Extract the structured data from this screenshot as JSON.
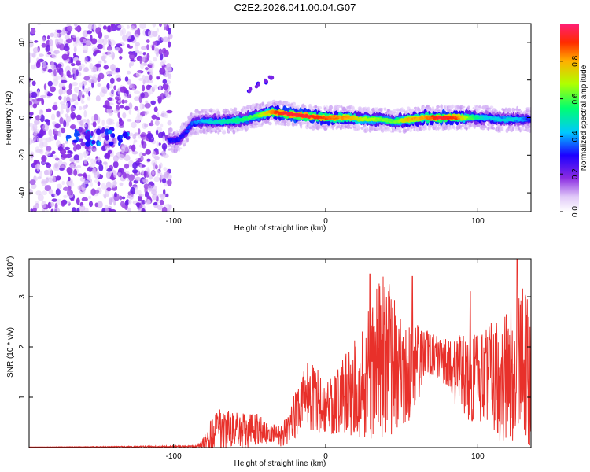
{
  "title": "C2E2.2026.041.00.04.G07",
  "chart_data": [
    {
      "type": "heatmap",
      "title": "C2E2.2026.041.00.04.G07",
      "xlabel": "Height of straight line (km)",
      "ylabel": "Frequency (Hz)",
      "xlim": [
        -195,
        135
      ],
      "ylim": [
        -50,
        50
      ],
      "xticks": [
        -100,
        0,
        100
      ],
      "yticks": [
        -40,
        -20,
        0,
        20,
        40
      ],
      "xtick_labels": [
        "-100",
        "0",
        "100"
      ],
      "ytick_labels": [
        "-40",
        "-20",
        "0",
        "20",
        "40"
      ],
      "colorbar": {
        "label": "Normalized spectral amplitude",
        "range": [
          0.0,
          1.0
        ],
        "ticks": [
          0.0,
          0.2,
          0.4,
          0.6,
          0.8
        ],
        "tick_labels": [
          "0.0",
          "0.2",
          "0.4",
          "0.6",
          "0.8"
        ]
      },
      "noise_region_x": [
        -195,
        -102
      ],
      "ridge": {
        "x": [
          -103,
          -97,
          -92,
          -88,
          -82,
          -75,
          -65,
          -55,
          -45,
          -35,
          -25,
          -15,
          -5,
          5,
          15,
          25,
          35,
          45,
          55,
          65,
          75,
          85,
          95,
          105,
          115,
          125,
          135
        ],
        "freq": [
          -12,
          -12,
          -8,
          -3,
          -2,
          -2,
          -2,
          -1,
          1,
          3,
          2,
          1,
          0,
          0,
          0,
          -1,
          -1,
          -2,
          -1,
          0,
          0,
          0,
          0,
          0,
          -1,
          -1,
          -1
        ],
        "amplitude": [
          0.3,
          0.3,
          0.3,
          0.35,
          0.4,
          0.45,
          0.5,
          0.55,
          0.6,
          0.85,
          0.95,
          0.95,
          0.9,
          0.85,
          0.8,
          0.7,
          0.65,
          0.6,
          0.8,
          0.8,
          0.95,
          0.9,
          0.6,
          0.45,
          0.45,
          0.45,
          0.3
        ]
      },
      "side_branch": {
        "x": [
          -50,
          -45,
          -40,
          -36
        ],
        "freq": [
          15,
          17,
          19,
          21
        ]
      }
    },
    {
      "type": "line",
      "xlabel": "Height of straight line (km)",
      "ylabel": "SNR (10 * v/v)",
      "yscale_label": "(x10",
      "yscale_exponent": "4",
      "xlim": [
        -195,
        135
      ],
      "ylim": [
        0,
        3.75
      ],
      "xticks": [
        -100,
        0,
        100
      ],
      "yticks": [
        1,
        2,
        3
      ],
      "xtick_labels": [
        "-100",
        "0",
        "100"
      ],
      "ytick_labels": [
        "1",
        "2",
        "3"
      ],
      "color": "#e8302a",
      "series": [
        {
          "name": "SNR",
          "x": [
            -195,
            -85,
            -80,
            -75,
            -70,
            -65,
            -60,
            -55,
            -50,
            -45,
            -40,
            -35,
            -30,
            -25,
            -20,
            -15,
            -10,
            -5,
            0,
            5,
            10,
            15,
            20,
            25,
            30,
            35,
            40,
            45,
            50,
            55,
            60,
            65,
            70,
            75,
            80,
            85,
            90,
            95,
            100,
            105,
            110,
            115,
            120,
            125,
            130,
            135
          ],
          "base": [
            0.01,
            0.02,
            0.08,
            0.2,
            0.3,
            0.35,
            0.32,
            0.3,
            0.28,
            0.35,
            0.3,
            0.25,
            0.2,
            0.3,
            0.6,
            0.9,
            1.0,
            0.9,
            0.75,
            0.8,
            0.9,
            1.0,
            1.1,
            1.2,
            1.4,
            1.6,
            1.7,
            1.5,
            1.2,
            1.3,
            1.6,
            1.7,
            1.8,
            1.75,
            1.6,
            1.5,
            1.4,
            1.3,
            1.3,
            1.4,
            1.3,
            1.2,
            1.3,
            1.4,
            1.5,
            1.2
          ],
          "spread": [
            0.0,
            0.02,
            0.12,
            0.35,
            0.45,
            0.4,
            0.35,
            0.35,
            0.35,
            0.3,
            0.25,
            0.2,
            0.2,
            0.3,
            0.5,
            0.6,
            0.8,
            0.7,
            0.5,
            0.6,
            0.7,
            0.9,
            1.0,
            1.2,
            1.4,
            1.6,
            1.6,
            1.4,
            1.2,
            1.0,
            0.8,
            0.6,
            0.5,
            0.4,
            0.5,
            0.7,
            0.8,
            0.9,
            0.9,
            1.0,
            1.1,
            1.2,
            1.3,
            1.5,
            1.6,
            1.6
          ]
        }
      ],
      "peaks": [
        {
          "x": 29,
          "y": 3.45
        },
        {
          "x": 42,
          "y": 3.0
        },
        {
          "x": 57,
          "y": 3.4
        },
        {
          "x": 95,
          "y": 3.1
        },
        {
          "x": 126,
          "y": 3.75
        }
      ]
    }
  ]
}
